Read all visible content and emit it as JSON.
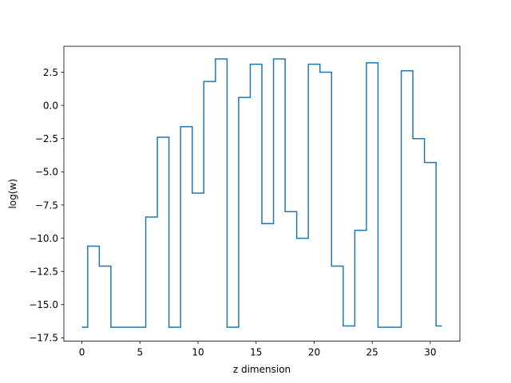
{
  "chart_data": {
    "type": "line",
    "step": "mid",
    "title": "",
    "xlabel": "z dimension",
    "ylabel": "log(w)",
    "xlim": [
      -1.55,
      32.55
    ],
    "ylim": [
      -17.75,
      4.45
    ],
    "xticks": [
      0,
      5,
      10,
      15,
      20,
      25,
      30
    ],
    "yticks": [
      -17.5,
      -15.0,
      -12.5,
      -10.0,
      -7.5,
      -5.0,
      -2.5,
      0.0,
      2.5
    ],
    "ytick_labels": [
      "−17.5",
      "−15.0",
      "−12.5",
      "−10.0",
      "−7.5",
      "−5.0",
      "−2.5",
      "0.0",
      "2.5"
    ],
    "grid": false,
    "series": [
      {
        "color": "#1f77b4",
        "x": [
          0,
          1,
          2,
          3,
          4,
          5,
          6,
          7,
          8,
          9,
          10,
          11,
          12,
          13,
          14,
          15,
          16,
          17,
          18,
          19,
          20,
          21,
          22,
          23,
          24,
          25,
          26,
          27,
          28,
          29,
          30,
          31
        ],
        "y": [
          -16.7,
          -10.6,
          -12.1,
          -16.7,
          -16.7,
          -16.7,
          -8.4,
          -2.4,
          -16.7,
          -1.6,
          -6.6,
          1.8,
          3.5,
          -16.7,
          0.6,
          3.1,
          -8.9,
          3.5,
          -8.0,
          -10.0,
          3.1,
          2.5,
          -12.1,
          -16.6,
          -9.4,
          3.2,
          -16.7,
          -16.7,
          2.6,
          -2.5,
          -4.3,
          -16.6
        ]
      }
    ]
  }
}
